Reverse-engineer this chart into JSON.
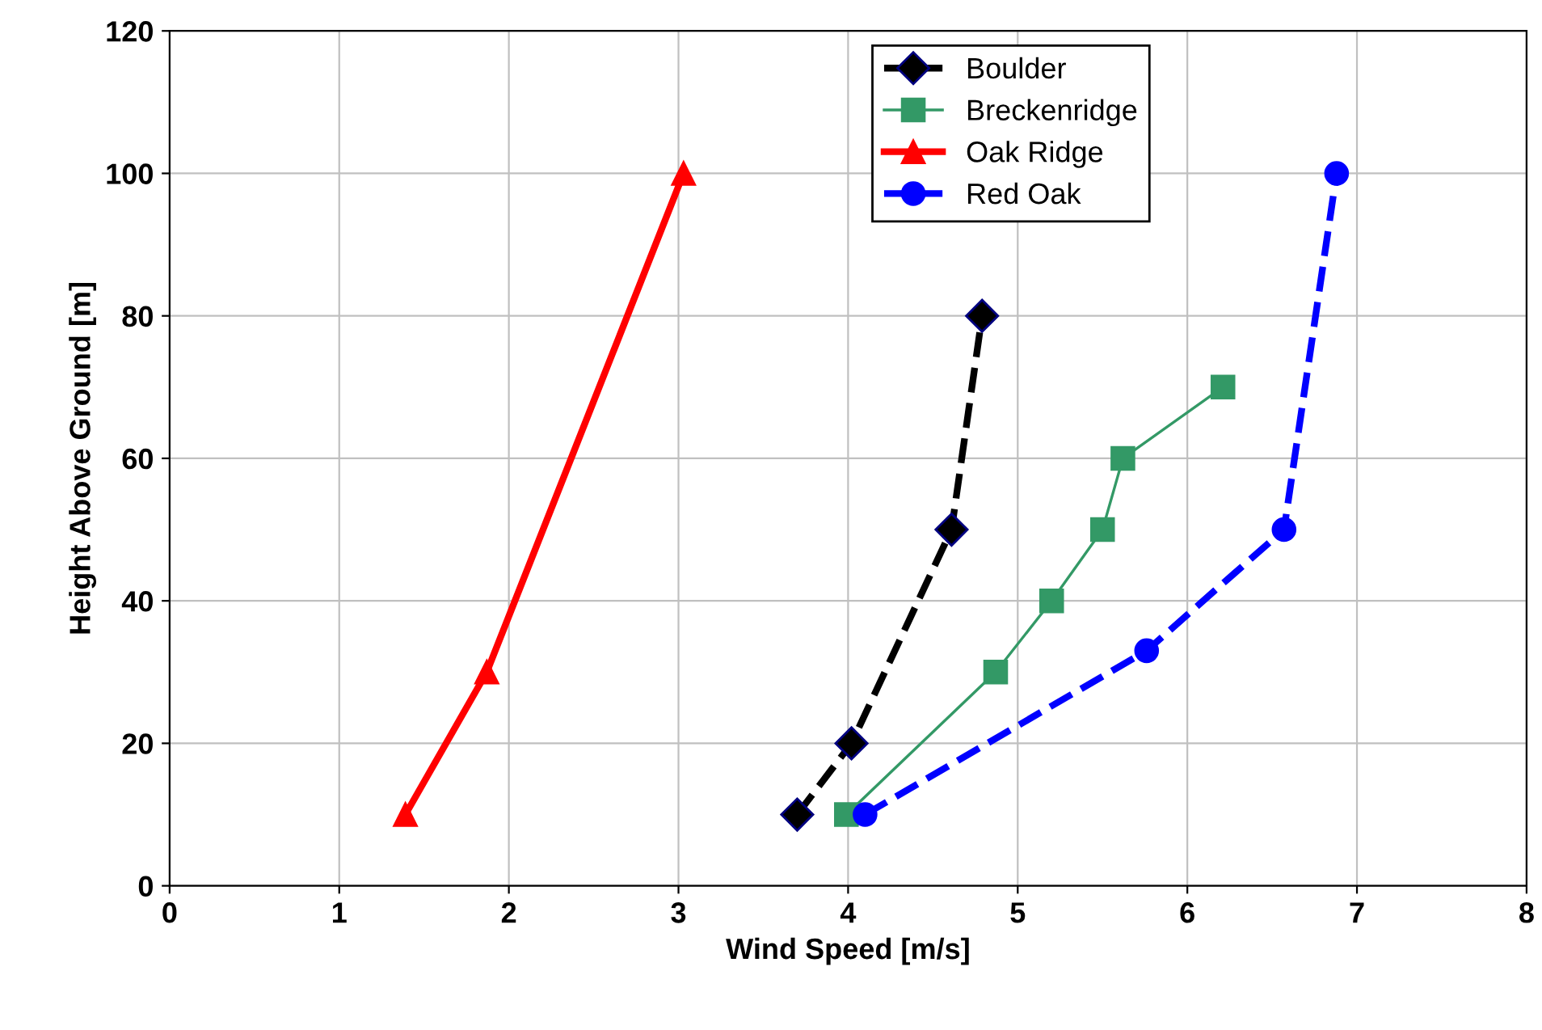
{
  "chart_data": {
    "type": "line",
    "xlabel": "Wind Speed [m/s]",
    "ylabel": "Height Above Ground [m]",
    "xlim": [
      0,
      8
    ],
    "xticks": [
      0,
      1,
      2,
      3,
      4,
      5,
      6,
      7,
      8
    ],
    "ylim": [
      0,
      120
    ],
    "yticks": [
      0,
      20,
      40,
      60,
      80,
      100,
      120
    ],
    "grid": true,
    "legend": "top",
    "series": [
      {
        "name": "Boulder",
        "color": "#000000",
        "marker": "diamond",
        "line_style": "dashed",
        "x": [
          3.7,
          4.02,
          4.61,
          4.79
        ],
        "values": [
          10,
          20,
          50,
          80
        ]
      },
      {
        "name": "Breckenridge",
        "color": "#339966",
        "marker": "square",
        "line_style": "solid",
        "x": [
          3.99,
          4.87,
          5.2,
          5.5,
          5.62,
          6.21
        ],
        "values": [
          10,
          30,
          40,
          50,
          60,
          70
        ]
      },
      {
        "name": "Oak Ridge",
        "color": "#ff0000",
        "marker": "triangle",
        "line_style": "solid",
        "x": [
          1.39,
          1.87,
          3.03
        ],
        "values": [
          10,
          30,
          100
        ]
      },
      {
        "name": "Red Oak",
        "color": "#0000ff",
        "marker": "circle",
        "line_style": "dashed",
        "x": [
          4.1,
          5.76,
          6.57,
          6.88
        ],
        "values": [
          10,
          33,
          50,
          100
        ]
      }
    ]
  }
}
